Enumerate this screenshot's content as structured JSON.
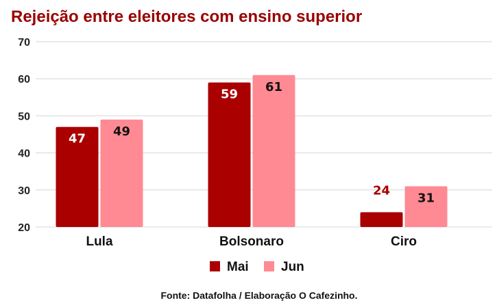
{
  "chart_data": {
    "type": "bar",
    "title": "Rejeição entre eleitores com ensino superior",
    "categories": [
      "Lula",
      "Bolsonaro",
      "Ciro"
    ],
    "series": [
      {
        "name": "Mai",
        "values": [
          47,
          59,
          24
        ],
        "color": "#aa0000"
      },
      {
        "name": "Jun",
        "values": [
          49,
          61,
          31
        ],
        "color": "#ff8a93"
      }
    ],
    "ylim": [
      20,
      70
    ],
    "yticks": [
      20,
      30,
      40,
      50,
      60,
      70
    ],
    "grid": true,
    "legend": "bottom-center",
    "title_color": "#990000",
    "source": "Fonte: Datafolha / Elaboração O Cafezinho."
  }
}
